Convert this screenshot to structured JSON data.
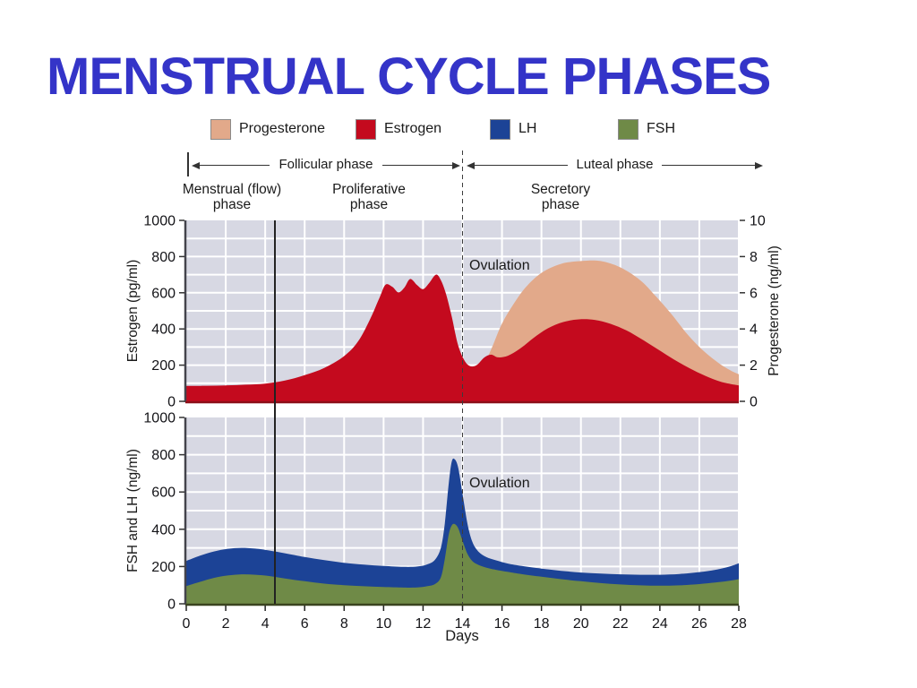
{
  "slide": {
    "title": "MENSTRUAL CYCLE PHASES",
    "title_color": "#3434C8"
  },
  "legend": [
    {
      "label": "Progesterone",
      "color": "#E2A98A"
    },
    {
      "label": "Estrogen",
      "color": "#C40A1E"
    },
    {
      "label": "LH",
      "color": "#1C4396"
    },
    {
      "label": "FSH",
      "color": "#6F8A47"
    }
  ],
  "phase_bar": {
    "follicular_label": "Follicular phase",
    "luteal_label": "Luteal phase",
    "menstrual": {
      "line1": "Menstrual (flow)",
      "line2": "phase"
    },
    "proliferative": {
      "line1": "Proliferative",
      "line2": "phase"
    },
    "secretory": {
      "line1": "Secretory",
      "line2": "phase"
    }
  },
  "annotations": {
    "ovulation_top": "Ovulation",
    "ovulation_bottom": "Ovulation",
    "menses_end_line_day": 4.5,
    "ovulation_line_day": 14
  },
  "x_axis": {
    "label": "Days",
    "range": [
      0,
      28
    ],
    "ticks": [
      0,
      2,
      4,
      6,
      8,
      10,
      12,
      14,
      16,
      18,
      20,
      22,
      24,
      26,
      28
    ]
  },
  "chart_data": [
    {
      "type": "area",
      "plot_bg": "#D7D8E3",
      "grid_color": "#FFFFFF",
      "baseline_color": "#8C1019",
      "y_left": {
        "label": "Estrogen (pg/ml)",
        "range": [
          0,
          1000
        ],
        "ticks": [
          0,
          200,
          400,
          600,
          800,
          1000
        ],
        "grid_step": 100
      },
      "y_right": {
        "label": "Progesterone (ng/ml)",
        "range": [
          0,
          10
        ],
        "ticks": [
          0,
          2,
          4,
          6,
          8,
          10
        ]
      },
      "series": [
        {
          "name": "Progesterone",
          "axis": "right",
          "color": "#E2A98A",
          "points": [
            [
              0,
              0.05
            ],
            [
              3,
              0.05
            ],
            [
              6,
              0.05
            ],
            [
              9,
              0.06
            ],
            [
              11,
              0.08
            ],
            [
              12.5,
              0.12
            ],
            [
              13.5,
              0.2
            ],
            [
              14,
              0.35
            ],
            [
              14.5,
              0.9
            ],
            [
              15,
              1.8
            ],
            [
              15.5,
              3.0
            ],
            [
              16,
              4.3
            ],
            [
              16.6,
              5.4
            ],
            [
              17.2,
              6.3
            ],
            [
              18,
              7.1
            ],
            [
              19,
              7.6
            ],
            [
              20,
              7.75
            ],
            [
              21,
              7.75
            ],
            [
              22,
              7.4
            ],
            [
              23,
              6.7
            ],
            [
              23.8,
              5.8
            ],
            [
              24.6,
              4.8
            ],
            [
              25.4,
              3.7
            ],
            [
              26.2,
              2.8
            ],
            [
              27,
              2.1
            ],
            [
              27.6,
              1.7
            ],
            [
              28,
              1.5
            ]
          ]
        },
        {
          "name": "Estrogen",
          "axis": "left",
          "color": "#C40A1E",
          "points": [
            [
              0,
              85
            ],
            [
              1,
              86
            ],
            [
              2,
              88
            ],
            [
              3,
              92
            ],
            [
              4,
              98
            ],
            [
              5,
              115
            ],
            [
              6,
              145
            ],
            [
              7,
              185
            ],
            [
              8,
              250
            ],
            [
              8.7,
              330
            ],
            [
              9.3,
              450
            ],
            [
              9.8,
              575
            ],
            [
              10.1,
              645
            ],
            [
              10.45,
              632
            ],
            [
              10.75,
              602
            ],
            [
              11.05,
              628
            ],
            [
              11.35,
              676
            ],
            [
              11.7,
              642
            ],
            [
              12,
              620
            ],
            [
              12.3,
              652
            ],
            [
              12.65,
              700
            ],
            [
              12.9,
              670
            ],
            [
              13.15,
              598
            ],
            [
              13.45,
              470
            ],
            [
              13.75,
              320
            ],
            [
              14.05,
              235
            ],
            [
              14.35,
              196
            ],
            [
              14.7,
              199
            ],
            [
              15.1,
              242
            ],
            [
              15.45,
              258
            ],
            [
              15.8,
              243
            ],
            [
              16.3,
              252
            ],
            [
              16.9,
              290
            ],
            [
              17.6,
              350
            ],
            [
              18.3,
              402
            ],
            [
              19.1,
              438
            ],
            [
              19.9,
              453
            ],
            [
              20.7,
              450
            ],
            [
              21.5,
              428
            ],
            [
              22.3,
              392
            ],
            [
              23.1,
              342
            ],
            [
              23.9,
              287
            ],
            [
              24.7,
              232
            ],
            [
              25.5,
              183
            ],
            [
              26.3,
              141
            ],
            [
              27.1,
              108
            ],
            [
              28,
              88
            ]
          ]
        }
      ]
    },
    {
      "type": "area",
      "plot_bg": "#D7D8E3",
      "grid_color": "#FFFFFF",
      "baseline_color": "#3A431F",
      "y_left": {
        "label": "FSH and LH (ng/ml)",
        "range": [
          0,
          1000
        ],
        "ticks": [
          0,
          200,
          400,
          600,
          800,
          1000
        ],
        "grid_step": 100
      },
      "series": [
        {
          "name": "LH",
          "axis": "left",
          "color": "#1C4396",
          "points": [
            [
              0,
              230
            ],
            [
              0.7,
              258
            ],
            [
              1.4,
              281
            ],
            [
              2.1,
              295
            ],
            [
              2.8,
              300
            ],
            [
              3.5,
              296
            ],
            [
              4.2,
              286
            ],
            [
              5,
              271
            ],
            [
              6,
              251
            ],
            [
              7,
              234
            ],
            [
              8,
              220
            ],
            [
              9,
              210
            ],
            [
              10,
              203
            ],
            [
              11,
              198
            ],
            [
              11.7,
              200
            ],
            [
              12.2,
              211
            ],
            [
              12.6,
              236
            ],
            [
              12.9,
              300
            ],
            [
              13.1,
              430
            ],
            [
              13.3,
              645
            ],
            [
              13.45,
              762
            ],
            [
              13.6,
              776
            ],
            [
              13.78,
              730
            ],
            [
              14,
              590
            ],
            [
              14.25,
              430
            ],
            [
              14.5,
              332
            ],
            [
              14.8,
              281
            ],
            [
              15.2,
              251
            ],
            [
              15.7,
              233
            ],
            [
              16.3,
              216
            ],
            [
              17,
              203
            ],
            [
              18,
              189
            ],
            [
              19,
              177
            ],
            [
              20,
              168
            ],
            [
              21,
              162
            ],
            [
              22,
              158
            ],
            [
              23,
              156
            ],
            [
              24,
              156
            ],
            [
              25,
              160
            ],
            [
              26,
              170
            ],
            [
              26.8,
              182
            ],
            [
              27.5,
              199
            ],
            [
              28,
              218
            ]
          ]
        },
        {
          "name": "FSH",
          "axis": "left",
          "color": "#6F8A47",
          "points": [
            [
              0,
              95
            ],
            [
              0.7,
              118
            ],
            [
              1.4,
              139
            ],
            [
              2.1,
              152
            ],
            [
              2.8,
              158
            ],
            [
              3.5,
              156
            ],
            [
              4.2,
              149
            ],
            [
              5,
              136
            ],
            [
              6,
              121
            ],
            [
              7,
              108
            ],
            [
              8,
              100
            ],
            [
              9,
              94
            ],
            [
              10,
              90
            ],
            [
              11,
              87
            ],
            [
              11.7,
              88
            ],
            [
              12.2,
              94
            ],
            [
              12.6,
              106
            ],
            [
              12.9,
              142
            ],
            [
              13.1,
              240
            ],
            [
              13.3,
              372
            ],
            [
              13.45,
              420
            ],
            [
              13.6,
              428
            ],
            [
              13.78,
              405
            ],
            [
              14,
              338
            ],
            [
              14.25,
              268
            ],
            [
              14.5,
              229
            ],
            [
              14.8,
              209
            ],
            [
              15.2,
              194
            ],
            [
              15.7,
              182
            ],
            [
              16.3,
              171
            ],
            [
              17,
              159
            ],
            [
              18,
              145
            ],
            [
              19,
              132
            ],
            [
              20,
              121
            ],
            [
              21,
              111
            ],
            [
              22,
              104
            ],
            [
              23,
              99
            ],
            [
              24,
              97
            ],
            [
              25,
              99
            ],
            [
              26,
              106
            ],
            [
              26.8,
              114
            ],
            [
              27.5,
              123
            ],
            [
              28,
              132
            ]
          ]
        }
      ]
    }
  ]
}
